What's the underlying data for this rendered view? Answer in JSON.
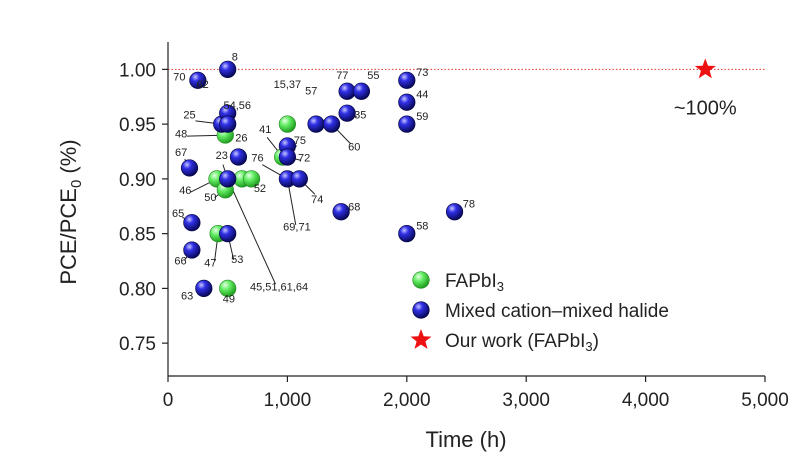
{
  "chart_data": {
    "type": "scatter",
    "xlabel": "Time (h)",
    "ylabel": {
      "main": "PCE/PCE",
      "sub": "0",
      "unit": " (%)"
    },
    "xlim": [
      0,
      5000
    ],
    "ylim": [
      0.72,
      1.025
    ],
    "xticks": [
      {
        "value": 0,
        "label": "0"
      },
      {
        "value": 1000,
        "label": "1,000"
      },
      {
        "value": 2000,
        "label": "2,000"
      },
      {
        "value": 3000,
        "label": "3,000"
      },
      {
        "value": 4000,
        "label": "4,000"
      },
      {
        "value": 5000,
        "label": "5,000"
      }
    ],
    "yticks": [
      {
        "value": 0.75,
        "label": "0.75"
      },
      {
        "value": 0.8,
        "label": "0.80"
      },
      {
        "value": 0.85,
        "label": "0.85"
      },
      {
        "value": 0.9,
        "label": "0.90"
      },
      {
        "value": 0.95,
        "label": "0.95"
      },
      {
        "value": 1.0,
        "label": "1.00"
      }
    ],
    "reference_line": {
      "y": 1.0,
      "color": "#e03030",
      "style": "dotted"
    },
    "colors": {
      "fapbi3": "#44dd44",
      "mixed": "#1a1acc",
      "ours": "#ee1111"
    },
    "series": [
      {
        "name": "FAPbI3",
        "points": [
          {
            "x": 480,
            "y": 0.94
          },
          {
            "x": 1000,
            "y": 0.95
          },
          {
            "x": 410,
            "y": 0.9
          },
          {
            "x": 480,
            "y": 0.89
          },
          {
            "x": 620,
            "y": 0.9
          },
          {
            "x": 700,
            "y": 0.9
          },
          {
            "x": 420,
            "y": 0.85
          },
          {
            "x": 500,
            "y": 0.8
          },
          {
            "x": 960,
            "y": 0.92
          }
        ]
      },
      {
        "name": "Mixed cation–mixed halide",
        "points": [
          {
            "x": 500,
            "y": 1.0
          },
          {
            "x": 250,
            "y": 0.99
          },
          {
            "x": 450,
            "y": 0.95
          },
          {
            "x": 500,
            "y": 0.96
          },
          {
            "x": 500,
            "y": 0.95
          },
          {
            "x": 590,
            "y": 0.92
          },
          {
            "x": 500,
            "y": 0.9
          },
          {
            "x": 180,
            "y": 0.91
          },
          {
            "x": 200,
            "y": 0.86
          },
          {
            "x": 200,
            "y": 0.835
          },
          {
            "x": 500,
            "y": 0.85
          },
          {
            "x": 300,
            "y": 0.8
          },
          {
            "x": 1000,
            "y": 0.93
          },
          {
            "x": 1000,
            "y": 0.92
          },
          {
            "x": 1000,
            "y": 0.9
          },
          {
            "x": 1100,
            "y": 0.9
          },
          {
            "x": 1240,
            "y": 0.95
          },
          {
            "x": 1370,
            "y": 0.95
          },
          {
            "x": 1500,
            "y": 0.98
          },
          {
            "x": 1620,
            "y": 0.98
          },
          {
            "x": 1500,
            "y": 0.96
          },
          {
            "x": 1450,
            "y": 0.87
          },
          {
            "x": 2000,
            "y": 0.99
          },
          {
            "x": 2000,
            "y": 0.97
          },
          {
            "x": 2000,
            "y": 0.95
          },
          {
            "x": 2000,
            "y": 0.85
          },
          {
            "x": 2400,
            "y": 0.87
          }
        ]
      },
      {
        "name": "Our work (FAPbI3)",
        "points": [
          {
            "x": 4500,
            "y": 1.0
          }
        ]
      }
    ],
    "point_labels": [
      {
        "text": "8",
        "x": 560,
        "y": 1.008
      },
      {
        "text": "70",
        "x": 95,
        "y": 0.99
      },
      {
        "text": "62",
        "x": 290,
        "y": 0.983
      },
      {
        "text": "54,56",
        "x": 580,
        "y": 0.964
      },
      {
        "text": "25",
        "x": 180,
        "y": 0.955
      },
      {
        "text": "48",
        "x": 110,
        "y": 0.938
      },
      {
        "text": "67",
        "x": 110,
        "y": 0.921
      },
      {
        "text": "23",
        "x": 450,
        "y": 0.918
      },
      {
        "text": "26",
        "x": 615,
        "y": 0.934
      },
      {
        "text": "41",
        "x": 815,
        "y": 0.942
      },
      {
        "text": "76",
        "x": 750,
        "y": 0.916
      },
      {
        "text": "15,37",
        "x": 1000,
        "y": 0.983
      },
      {
        "text": "75",
        "x": 1105,
        "y": 0.932
      },
      {
        "text": "72",
        "x": 1140,
        "y": 0.916
      },
      {
        "text": "74",
        "x": 1250,
        "y": 0.878
      },
      {
        "text": "57",
        "x": 1200,
        "y": 0.977
      },
      {
        "text": "77",
        "x": 1460,
        "y": 0.991
      },
      {
        "text": "55",
        "x": 1720,
        "y": 0.991
      },
      {
        "text": "35",
        "x": 1610,
        "y": 0.955
      },
      {
        "text": "60",
        "x": 1560,
        "y": 0.926
      },
      {
        "text": "46",
        "x": 145,
        "y": 0.886
      },
      {
        "text": "50",
        "x": 355,
        "y": 0.88
      },
      {
        "text": "52",
        "x": 770,
        "y": 0.888
      },
      {
        "text": "65",
        "x": 85,
        "y": 0.865
      },
      {
        "text": "66",
        "x": 105,
        "y": 0.822
      },
      {
        "text": "47",
        "x": 355,
        "y": 0.82
      },
      {
        "text": "53",
        "x": 580,
        "y": 0.823
      },
      {
        "text": "63",
        "x": 160,
        "y": 0.79
      },
      {
        "text": "49",
        "x": 510,
        "y": 0.787
      },
      {
        "text": "45,51,61,64",
        "x": 930,
        "y": 0.798
      },
      {
        "text": "69,71",
        "x": 1080,
        "y": 0.853
      },
      {
        "text": "68",
        "x": 1560,
        "y": 0.871
      },
      {
        "text": "78",
        "x": 2520,
        "y": 0.874
      },
      {
        "text": "58",
        "x": 2130,
        "y": 0.854
      },
      {
        "text": "73",
        "x": 2130,
        "y": 0.994
      },
      {
        "text": "44",
        "x": 2130,
        "y": 0.974
      },
      {
        "text": "59",
        "x": 2130,
        "y": 0.954
      }
    ],
    "leader_lines": [
      {
        "from": [
          450,
          0.95
        ],
        "to": [
          230,
          0.953
        ]
      },
      {
        "from": [
          500,
          0.94
        ],
        "to": [
          160,
          0.939
        ]
      },
      {
        "from": [
          500,
          0.96
        ],
        "to": [
          560,
          0.962
        ]
      },
      {
        "from": [
          180,
          0.91
        ],
        "to": [
          140,
          0.918
        ]
      },
      {
        "from": [
          500,
          0.9
        ],
        "to": [
          460,
          0.913
        ]
      },
      {
        "from": [
          960,
          0.92
        ],
        "to": [
          830,
          0.938
        ]
      },
      {
        "from": [
          1000,
          0.9
        ],
        "to": [
          790,
          0.913
        ]
      },
      {
        "from": [
          1000,
          0.93
        ],
        "to": [
          1080,
          0.93
        ]
      },
      {
        "from": [
          1000,
          0.92
        ],
        "to": [
          1110,
          0.917
        ]
      },
      {
        "from": [
          1100,
          0.9
        ],
        "to": [
          1230,
          0.886
        ]
      },
      {
        "from": [
          1500,
          0.96
        ],
        "to": [
          1580,
          0.957
        ]
      },
      {
        "from": [
          1370,
          0.95
        ],
        "to": [
          1530,
          0.932
        ]
      },
      {
        "from": [
          410,
          0.9
        ],
        "to": [
          190,
          0.888
        ]
      },
      {
        "from": [
          480,
          0.89
        ],
        "to": [
          390,
          0.883
        ]
      },
      {
        "from": [
          200,
          0.86
        ],
        "to": [
          120,
          0.865
        ]
      },
      {
        "from": [
          200,
          0.835
        ],
        "to": [
          140,
          0.826
        ]
      },
      {
        "from": [
          420,
          0.85
        ],
        "to": [
          390,
          0.825
        ]
      },
      {
        "from": [
          500,
          0.85
        ],
        "to": [
          550,
          0.826
        ]
      },
      {
        "from": [
          500,
          0.9
        ],
        "to": [
          900,
          0.804
        ]
      },
      {
        "from": [
          1000,
          0.9
        ],
        "to": [
          1070,
          0.858
        ]
      }
    ],
    "annotation": {
      "text": "~100%",
      "x": 4500,
      "y": 0.979
    },
    "legend": {
      "placement": "lower-right",
      "entries": [
        {
          "label": "FAPbI",
          "sub": "3",
          "after": "",
          "marker": "circle",
          "color": "#44dd44"
        },
        {
          "label": "Mixed cation–mixed halide",
          "sub": "",
          "after": "",
          "marker": "circle",
          "color": "#1a1acc"
        },
        {
          "label": "Our work (FAPbI",
          "sub": "3",
          "after": ")",
          "marker": "star",
          "color": "#ee1111"
        }
      ]
    }
  }
}
